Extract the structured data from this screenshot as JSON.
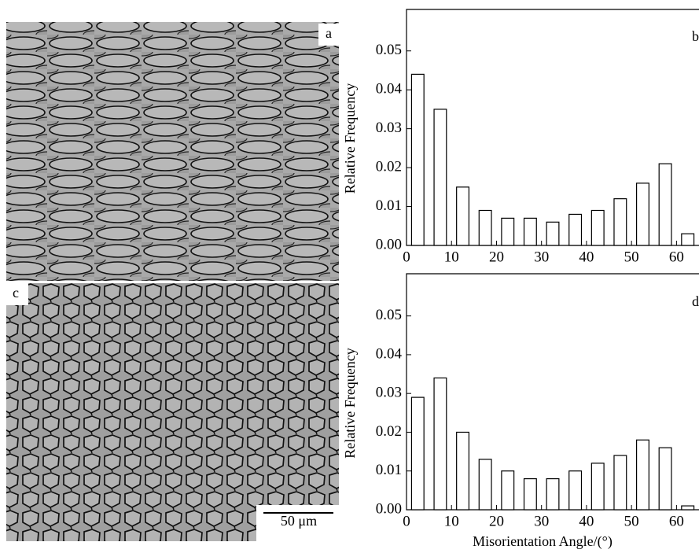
{
  "images": [
    {
      "label": "a"
    },
    {
      "label": "c",
      "scale_bar": "50 μm"
    }
  ],
  "chart_data": [
    {
      "type": "histogram",
      "panel_label": "b",
      "ylabel": "Relative Frequency",
      "bins": [
        0,
        5,
        10,
        15,
        20,
        25,
        30,
        35,
        40,
        45,
        50,
        55,
        60,
        65
      ],
      "values": [
        0.044,
        0.035,
        0.015,
        0.009,
        0.007,
        0.007,
        0.006,
        0.008,
        0.009,
        0.012,
        0.016,
        0.021,
        0.003
      ],
      "color": "#ffffff",
      "xlim": [
        0,
        65
      ],
      "xticks": [
        0,
        10,
        20,
        30,
        40,
        50,
        60
      ],
      "ylim": [
        0,
        0.055
      ],
      "yticks": [
        {
          "value": 0,
          "label": "0.00"
        },
        0.01,
        0.02,
        0.03,
        0.04,
        0.05
      ]
    },
    {
      "type": "histogram",
      "panel_label": "d",
      "ylabel": "Relative Frequency",
      "xlabel": "Misorientation Angle/(°)",
      "bins": [
        0,
        5,
        10,
        15,
        20,
        25,
        30,
        35,
        40,
        45,
        50,
        55,
        60,
        65
      ],
      "values": [
        0.029,
        0.034,
        0.02,
        0.013,
        0.01,
        0.008,
        0.008,
        0.01,
        0.012,
        0.014,
        0.018,
        0.016,
        0.001
      ],
      "color": "#ffffff",
      "xlim": [
        0,
        65
      ],
      "xticks": [
        0,
        10,
        20,
        30,
        40,
        50,
        60
      ],
      "ylim": [
        0,
        0.055
      ],
      "yticks": [
        {
          "value": 0,
          "label": "0.00"
        },
        0.01,
        0.02,
        0.03,
        0.04,
        0.05
      ]
    }
  ]
}
